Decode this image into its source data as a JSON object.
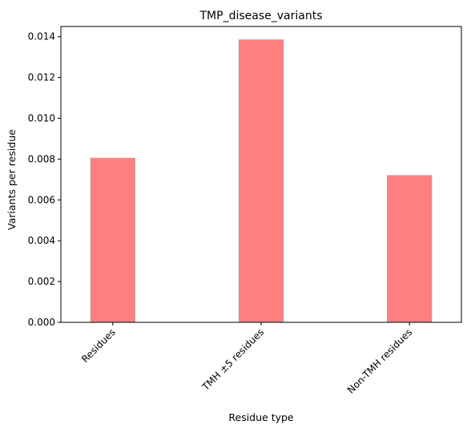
{
  "chart_data": {
    "type": "bar",
    "title": "TMP_disease_variants",
    "xlabel": "Residue type",
    "ylabel": "Variants per residue",
    "categories": [
      "Residues",
      "TMH ±5 residues",
      "Non-TMH residues"
    ],
    "values": [
      0.00805,
      0.01385,
      0.0072
    ],
    "ylim": [
      0,
      0.0145
    ],
    "yticks": [
      0.0,
      0.002,
      0.004,
      0.006,
      0.008,
      0.01,
      0.012,
      0.014
    ],
    "ytick_labels": [
      "0.000",
      "0.002",
      "0.004",
      "0.006",
      "0.008",
      "0.010",
      "0.012",
      "0.014"
    ],
    "grid": false,
    "legend": "none",
    "bar_color": "#ff7f7f",
    "bar_edge_color": "#aaaaaa"
  }
}
